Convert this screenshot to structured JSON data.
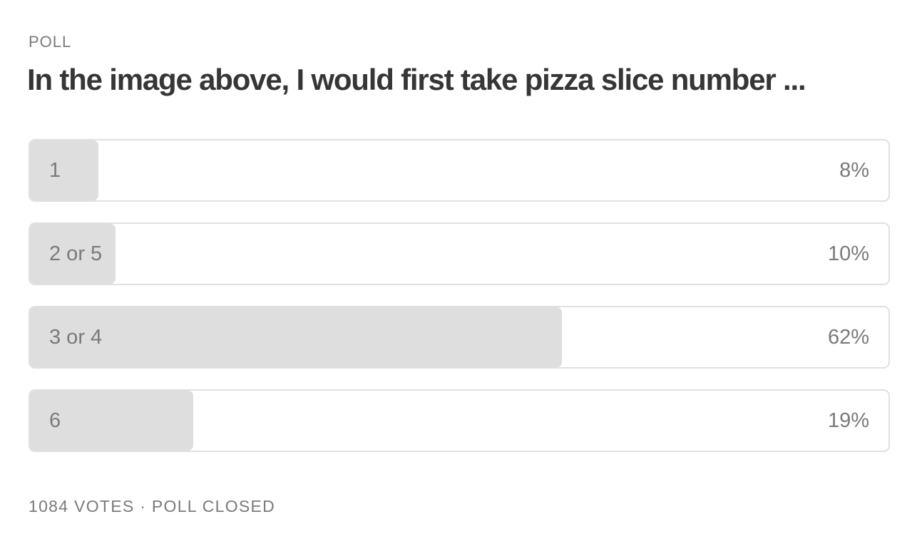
{
  "header": {
    "label": "POLL",
    "question": "In the image above, I would first take pizza slice number ..."
  },
  "options": [
    {
      "label": "1",
      "value": 8,
      "value_label": "8%"
    },
    {
      "label": "2 or 5",
      "value": 10,
      "value_label": "10%"
    },
    {
      "label": "3 or 4",
      "value": 62,
      "value_label": "62%"
    },
    {
      "label": "6",
      "value": 19,
      "value_label": "19%"
    }
  ],
  "footer": "1084 VOTES · POLL CLOSED"
}
